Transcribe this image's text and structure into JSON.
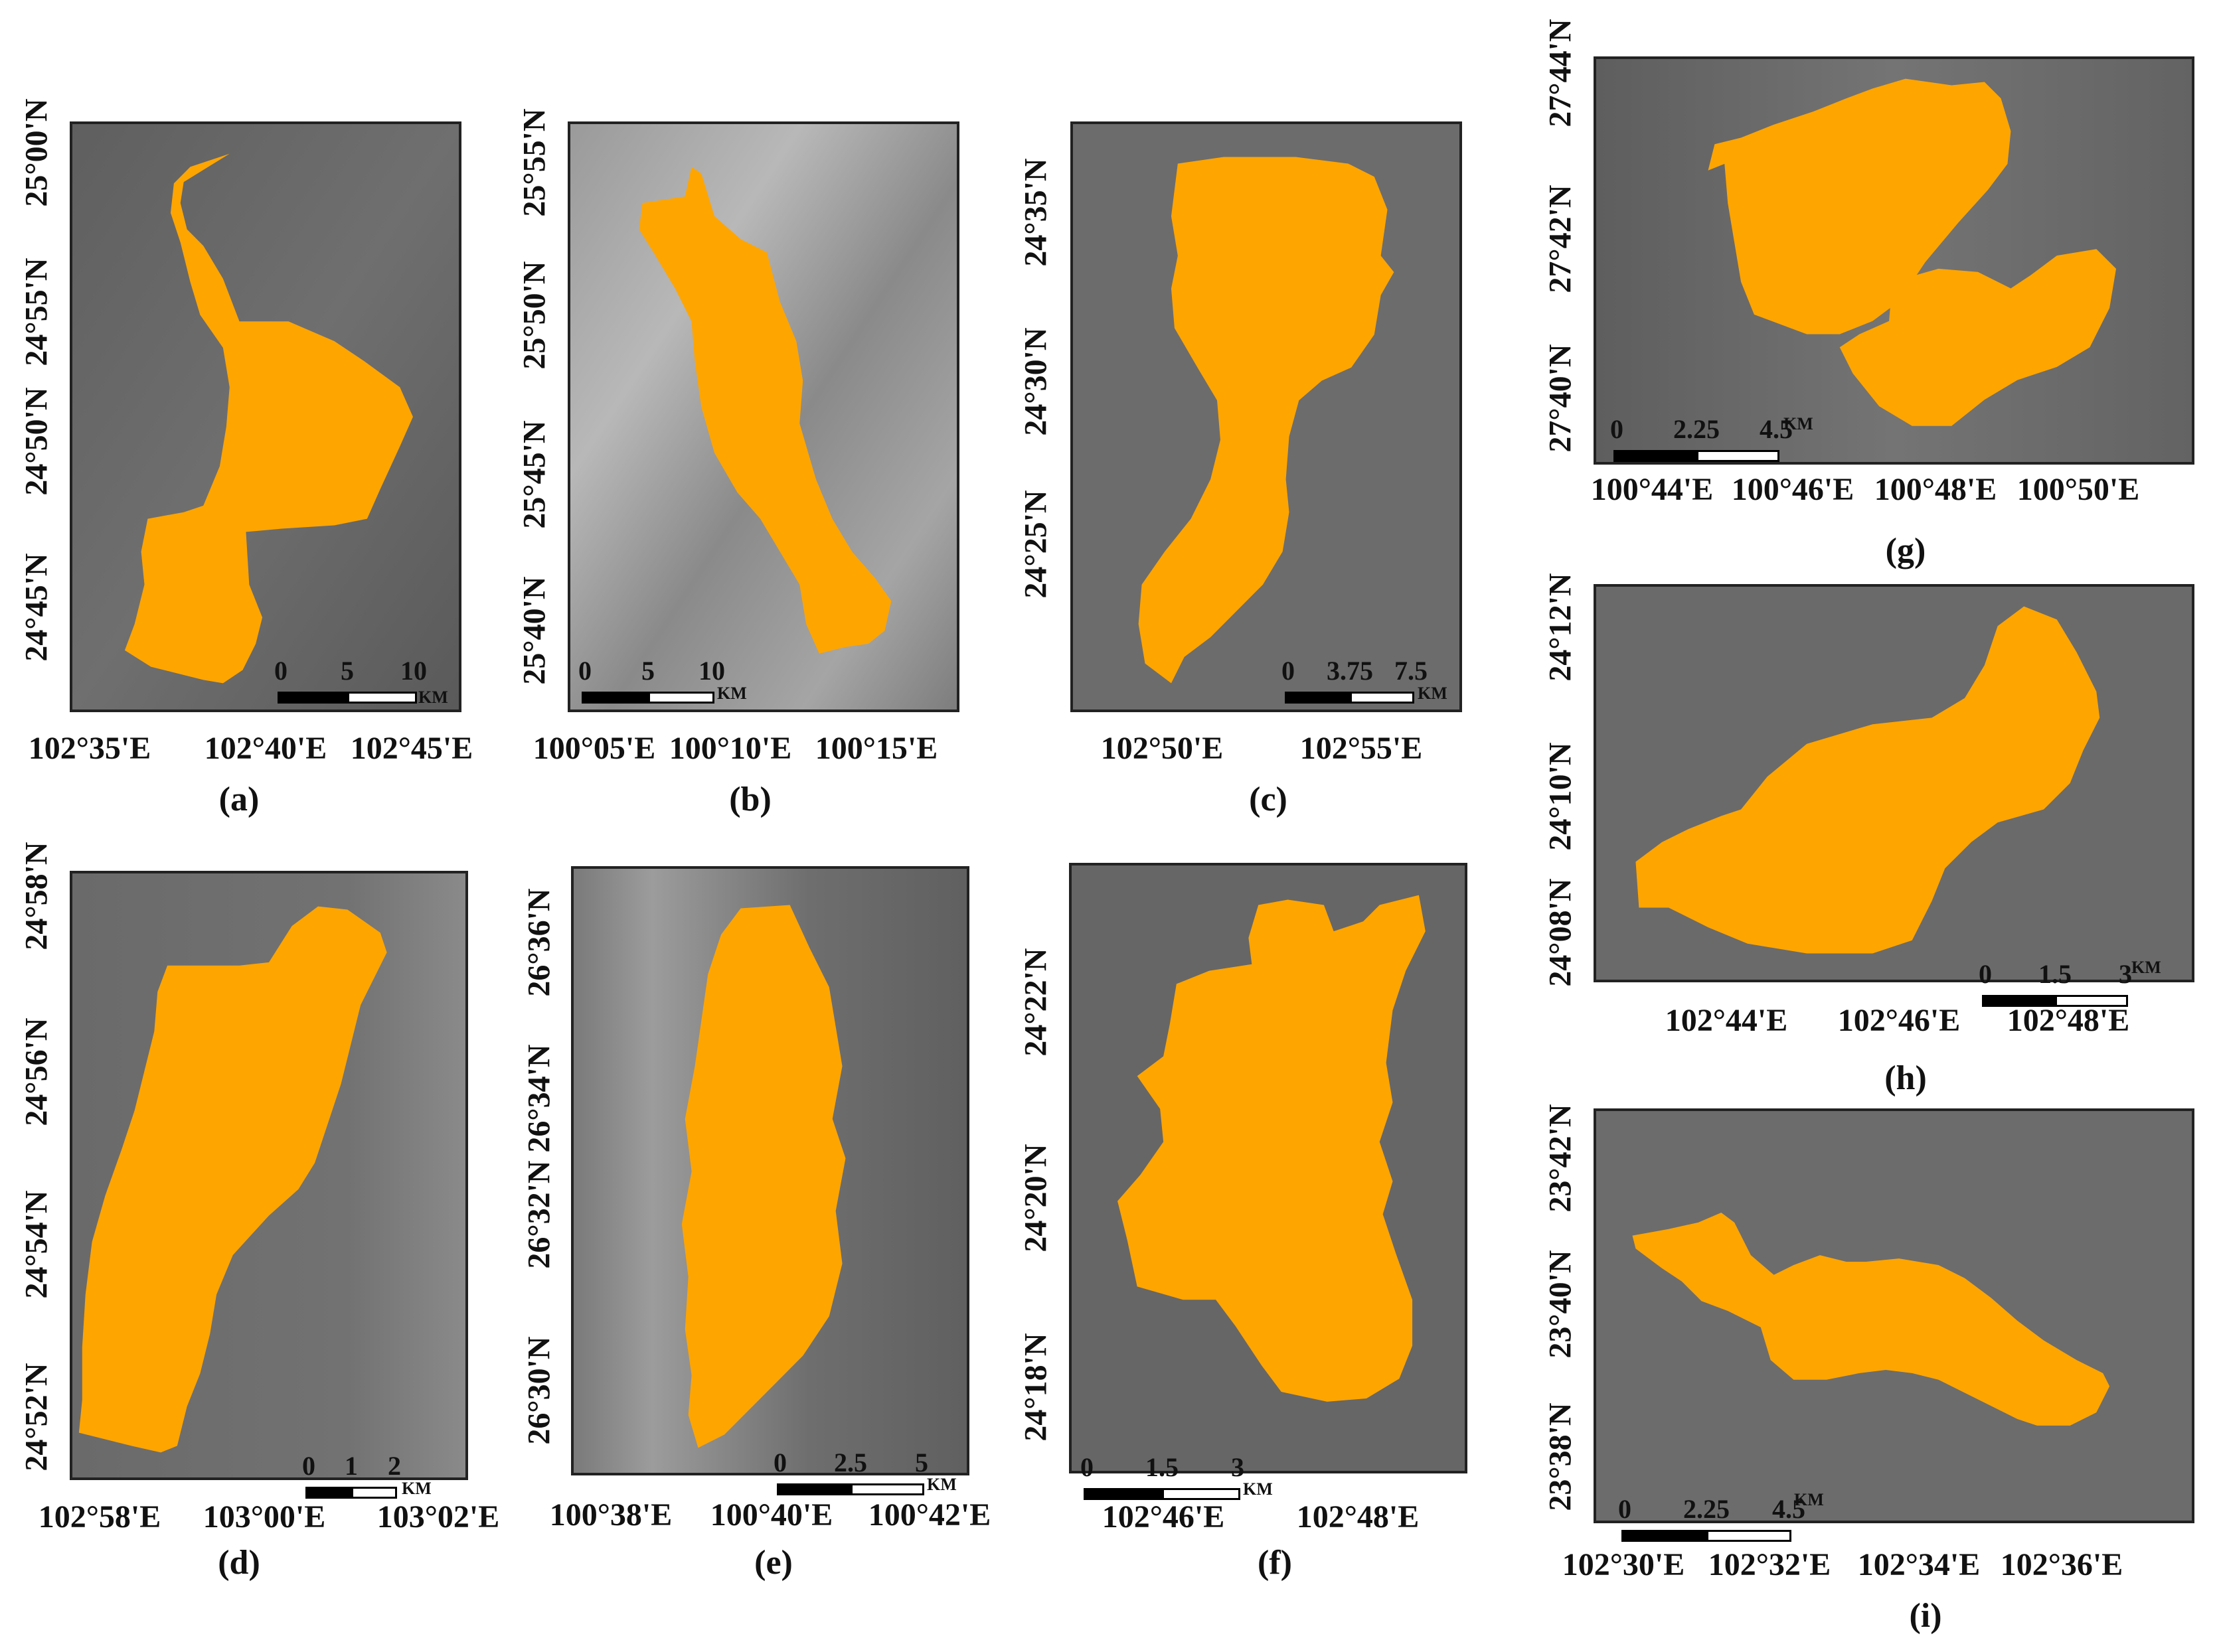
{
  "lake_color": "#FFA500",
  "background_color": "#6e6e6e",
  "panels": {
    "a": {
      "caption": "(a)",
      "x_ticks": [
        "102°35'E",
        "102°40'E",
        "102°45'E"
      ],
      "y_ticks": [
        "25°00'N",
        "24°55'N",
        "24°50'N",
        "24°45'N"
      ],
      "scale": {
        "labels": [
          "0",
          "5",
          "10"
        ],
        "unit": "KM"
      }
    },
    "b": {
      "caption": "(b)",
      "x_ticks": [
        "100°05'E",
        "100°10'E",
        "100°15'E"
      ],
      "y_ticks": [
        "25°55'N",
        "25°50'N",
        "25°45'N",
        "25°40'N"
      ],
      "scale": {
        "labels": [
          "0",
          "5",
          "10"
        ],
        "unit": "KM"
      }
    },
    "c": {
      "caption": "(c)",
      "x_ticks": [
        "102°50'E",
        "102°55'E"
      ],
      "y_ticks": [
        "24°35'N",
        "24°30'N",
        "24°25'N"
      ],
      "scale": {
        "labels": [
          "0",
          "3.75",
          "7.5"
        ],
        "unit": "KM"
      }
    },
    "d": {
      "caption": "(d)",
      "x_ticks": [
        "102°58'E",
        "103°00'E",
        "103°02'E"
      ],
      "y_ticks": [
        "24°58'N",
        "24°56'N",
        "24°54'N",
        "24°52'N"
      ],
      "scale": {
        "labels": [
          "0",
          "1",
          "2"
        ],
        "unit": "KM"
      }
    },
    "e": {
      "caption": "(e)",
      "x_ticks": [
        "100°38'E",
        "100°40'E",
        "100°42'E"
      ],
      "y_ticks": [
        "26°36'N",
        "26°34'N",
        "26°32'N",
        "26°30'N"
      ],
      "scale": {
        "labels": [
          "0",
          "2.5",
          "5"
        ],
        "unit": "KM"
      }
    },
    "f": {
      "caption": "(f)",
      "x_ticks": [
        "102°46'E",
        "102°48'E"
      ],
      "y_ticks": [
        "24°22'N",
        "24°20'N",
        "24°18'N"
      ],
      "scale": {
        "labels": [
          "0",
          "1.5",
          "3"
        ],
        "unit": "KM"
      }
    },
    "g": {
      "caption": "(g)",
      "x_ticks": [
        "100°44'E",
        "100°46'E",
        "100°48'E",
        "100°50'E"
      ],
      "y_ticks": [
        "27°44'N",
        "27°42'N",
        "27°40'N"
      ],
      "scale": {
        "labels": [
          "0",
          "2.25",
          "4.5"
        ],
        "unit": "KM"
      }
    },
    "h": {
      "caption": "(h)",
      "x_ticks": [
        "102°44'E",
        "102°46'E",
        "102°48'E"
      ],
      "y_ticks": [
        "24°12'N",
        "24°10'N",
        "24°08'N"
      ],
      "scale": {
        "labels": [
          "0",
          "1.5",
          "3"
        ],
        "unit": "KM"
      }
    },
    "i": {
      "caption": "(i)",
      "x_ticks": [
        "102°30'E",
        "102°32'E",
        "102°34'E",
        "102°36'E"
      ],
      "y_ticks": [
        "23°42'N",
        "23°40'N",
        "23°38'N"
      ],
      "scale": {
        "labels": [
          "0",
          "2.25",
          "4.5"
        ],
        "unit": "KM"
      }
    }
  }
}
